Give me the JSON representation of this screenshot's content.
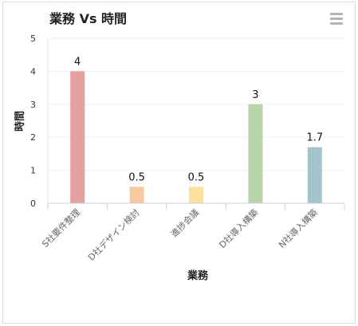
{
  "chart_data": {
    "type": "bar",
    "title": "業務 Vs 時間",
    "xlabel": "業務",
    "ylabel": "時間",
    "categories": [
      "S社要件整理",
      "D社デザイン検討",
      "進捗会議",
      "D社導入構築",
      "N社導入構築"
    ],
    "values": [
      4,
      0.5,
      0.5,
      3,
      1.7
    ],
    "data_labels": [
      "4",
      "0.5",
      "0.5",
      "3",
      "1.7"
    ],
    "yticks": [
      "0",
      "1",
      "2",
      "3",
      "4",
      "5"
    ],
    "ylim": [
      0,
      5
    ],
    "grid": true,
    "legend": "none",
    "colors": [
      "#e8a09e",
      "#f7c9a1",
      "#fbe0a0",
      "#b9d4ab",
      "#a4c4cc"
    ]
  },
  "toolbar": {
    "menu_icon": "hamburger-menu-icon"
  }
}
